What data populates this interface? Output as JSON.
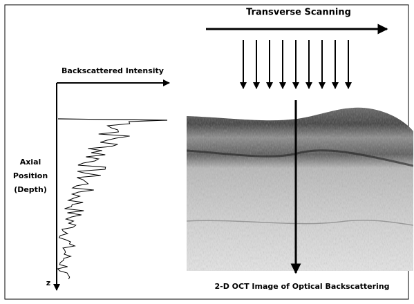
{
  "diagram": {
    "top_label": "Transverse Scanning",
    "intensity_axis_label": "Backscattered Intensity",
    "depth_axis_label": [
      "Axial",
      "Position",
      "(Depth)"
    ],
    "depth_axis_symbol": "z",
    "image_caption": "2-D OCT Image of Optical Backscattering"
  }
}
